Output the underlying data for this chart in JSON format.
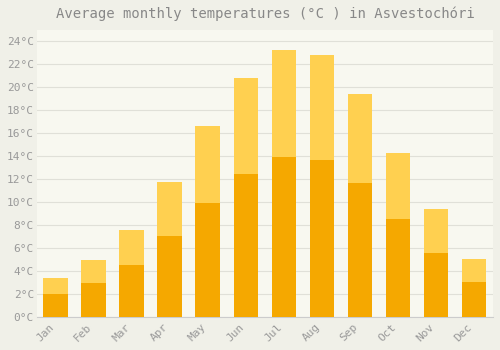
{
  "title": "Average monthly temperatures (°C ) in Asvestochóri",
  "months": [
    "Jan",
    "Feb",
    "Mar",
    "Apr",
    "May",
    "Jun",
    "Jul",
    "Aug",
    "Sep",
    "Oct",
    "Nov",
    "Dec"
  ],
  "values": [
    3.4,
    5.0,
    7.6,
    11.8,
    16.6,
    20.8,
    23.2,
    22.8,
    19.4,
    14.3,
    9.4,
    5.1
  ],
  "bar_color_bottom": "#F5A800",
  "bar_color_top": "#FFD050",
  "background_color": "#F0F0E8",
  "plot_bg_color": "#F8F8F0",
  "grid_color": "#E0E0D8",
  "text_color": "#999999",
  "title_color": "#888888",
  "spine_color": "#CCCCCC",
  "ylim": [
    0,
    25
  ],
  "yticks": [
    0,
    2,
    4,
    6,
    8,
    10,
    12,
    14,
    16,
    18,
    20,
    22,
    24
  ],
  "title_fontsize": 10,
  "tick_fontsize": 8,
  "bar_width": 0.65
}
